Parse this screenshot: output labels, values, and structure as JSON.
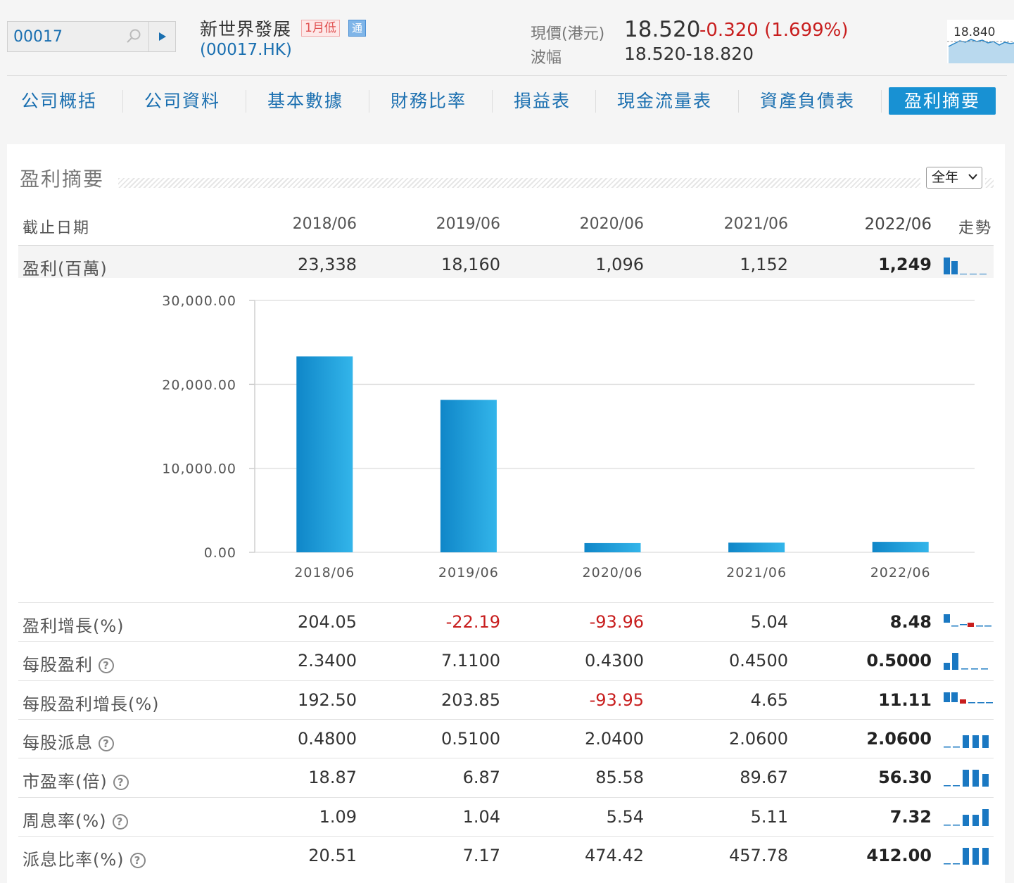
{
  "search": {
    "value": "00017"
  },
  "stock": {
    "name": "新世界發展",
    "tag_low": "1月低",
    "tag_connect": "通",
    "code": "(00017.HK)",
    "price_label": "現價(港元)",
    "price": "18.520",
    "change": "-0.320 (1.699%)",
    "range_label": "波幅",
    "range": "18.520-18.820",
    "mini_chart_label": "18.840"
  },
  "tabs": [
    "公司概括",
    "公司資料",
    "基本數據",
    "財務比率",
    "損益表",
    "現金流量表",
    "資產負債表",
    "盈利摘要"
  ],
  "active_tab": "盈利摘要",
  "section": {
    "title": "盈利摘要",
    "period_option": "全年"
  },
  "table": {
    "header_label": "截止日期",
    "trend_label": "走勢",
    "columns": [
      "2018/06",
      "2019/06",
      "2020/06",
      "2021/06",
      "2022/06"
    ],
    "profit_row": {
      "label": "盈利(百萬)",
      "values": [
        "23,338",
        "18,160",
        "1,096",
        "1,152",
        "1,249"
      ]
    },
    "rows": [
      {
        "label": "盈利增長(%)",
        "help": false,
        "values": [
          "204.05",
          "-22.19",
          "-93.96",
          "5.04",
          "8.48"
        ]
      },
      {
        "label": "每股盈利",
        "help": true,
        "values": [
          "2.3400",
          "7.1100",
          "0.4300",
          "0.4500",
          "0.5000"
        ]
      },
      {
        "label": "每股盈利增長(%)",
        "help": false,
        "values": [
          "192.50",
          "203.85",
          "-93.95",
          "4.65",
          "11.11"
        ]
      },
      {
        "label": "每股派息",
        "help": true,
        "values": [
          "0.4800",
          "0.5100",
          "2.0400",
          "2.0600",
          "2.0600"
        ]
      },
      {
        "label": "市盈率(倍)",
        "help": true,
        "values": [
          "18.87",
          "6.87",
          "85.58",
          "89.67",
          "56.30"
        ]
      },
      {
        "label": "周息率(%)",
        "help": true,
        "values": [
          "1.09",
          "1.04",
          "5.54",
          "5.11",
          "7.32"
        ]
      },
      {
        "label": "派息比率(%)",
        "help": true,
        "values": [
          "20.51",
          "7.17",
          "474.42",
          "457.78",
          "412.00"
        ]
      }
    ]
  },
  "colors": {
    "accent": "#1891d3",
    "negative": "#c81e1e",
    "link": "#1a6fb0",
    "bar": "#1a9ad8"
  },
  "chart_data": {
    "type": "bar",
    "categories": [
      "2018/06",
      "2019/06",
      "2020/06",
      "2021/06",
      "2022/06"
    ],
    "values": [
      23338,
      18160,
      1096,
      1152,
      1249
    ],
    "yticks": [
      "30,000.00",
      "20,000.00",
      "10,000.00",
      "0.00"
    ],
    "ylim": [
      0,
      30000
    ],
    "title": "",
    "xlabel": "",
    "ylabel": ""
  }
}
